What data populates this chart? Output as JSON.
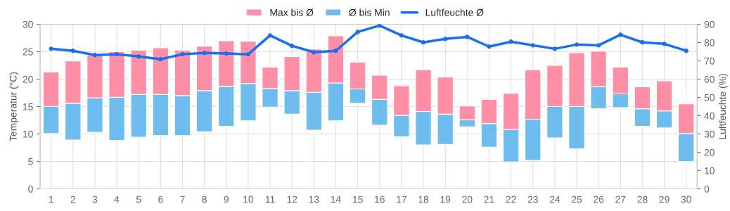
{
  "chart_data": {
    "type": "bar",
    "categories": [
      "1",
      "2",
      "3",
      "4",
      "5",
      "6",
      "7",
      "8",
      "9",
      "10",
      "11",
      "12",
      "13",
      "14",
      "15",
      "16",
      "17",
      "18",
      "19",
      "20",
      "21",
      "22",
      "23",
      "24",
      "25",
      "26",
      "27",
      "28",
      "29",
      "30"
    ],
    "series": [
      {
        "name": "Ø bis Min",
        "color": "#6fbdef",
        "base": [
          10.1,
          8.9,
          10.3,
          8.8,
          9.4,
          9.7,
          9.7,
          10.4,
          11.4,
          12.4,
          14.9,
          13.6,
          10.7,
          12.4,
          15.6,
          11.6,
          9.5,
          8.0,
          8.1,
          11.3,
          7.6,
          4.9,
          5.2,
          9.3,
          7.3,
          14.6,
          14.8,
          11.4,
          11.1,
          5.0
        ],
        "values": [
          4.9,
          6.7,
          6.3,
          7.9,
          7.8,
          7.5,
          7.3,
          7.5,
          7.3,
          6.8,
          3.4,
          4.3,
          6.9,
          6.9,
          2.6,
          4.7,
          3.9,
          6.1,
          5.5,
          1.3,
          4.3,
          5.9,
          7.5,
          5.7,
          7.7,
          4.0,
          2.5,
          3.2,
          3.1,
          5.1
        ]
      },
      {
        "name": "Max bis Ø",
        "color": "#ff8fa6",
        "base": [
          15.0,
          15.6,
          16.6,
          16.7,
          17.2,
          17.2,
          17.0,
          17.9,
          18.7,
          19.2,
          18.3,
          17.9,
          17.6,
          19.3,
          18.2,
          16.3,
          13.4,
          14.1,
          13.6,
          12.6,
          11.9,
          10.8,
          12.7,
          15.0,
          15.0,
          18.6,
          17.3,
          14.6,
          14.2,
          10.1
        ],
        "values": [
          6.3,
          7.7,
          7.8,
          8.3,
          8.1,
          8.5,
          8.3,
          8.1,
          8.3,
          7.7,
          3.9,
          6.2,
          7.9,
          8.6,
          4.9,
          4.4,
          5.4,
          7.6,
          6.8,
          2.5,
          4.4,
          6.6,
          9.0,
          7.5,
          9.8,
          6.5,
          4.9,
          4.0,
          5.5,
          5.4
        ]
      },
      {
        "name": "Luftfeuchte Ø",
        "type": "line",
        "axis": "y2",
        "color": "#1a6ef0",
        "marker": "circle",
        "line_style": "solid",
        "values": [
          76.6,
          75.5,
          73.2,
          73.6,
          72.4,
          70.9,
          73.6,
          74.3,
          74.0,
          73.6,
          83.9,
          78.2,
          74.7,
          75.5,
          85.8,
          89.3,
          83.9,
          80.1,
          82.0,
          83.1,
          77.8,
          80.5,
          78.5,
          76.6,
          78.9,
          78.5,
          84.3,
          80.1,
          79.3,
          75.5
        ]
      }
    ],
    "ylabel": "Temperatur (°C)",
    "y2label": "Luftfeuchte (%)",
    "ylim": [
      0,
      30
    ],
    "yticks": [
      0,
      5,
      10,
      15,
      20,
      25,
      30
    ],
    "y2lim": [
      0,
      90
    ],
    "y2ticks": [
      0,
      10,
      20,
      30,
      40,
      50,
      60,
      70,
      80,
      90
    ],
    "grid": true,
    "legend": "top"
  }
}
